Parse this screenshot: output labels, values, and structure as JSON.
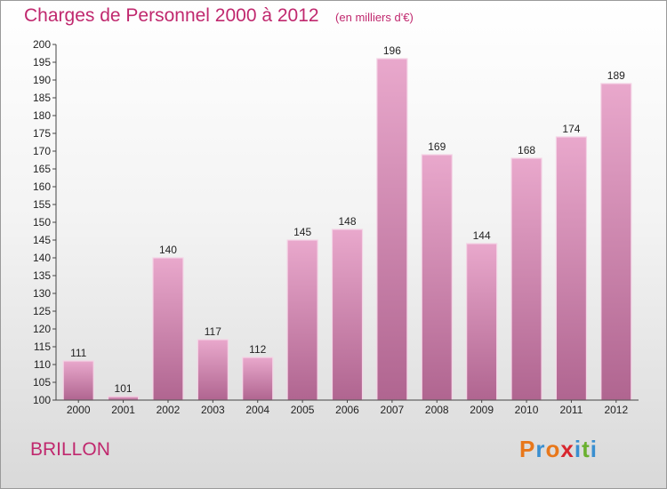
{
  "header": {
    "title": "Charges de Personnel 2000 à 2012",
    "unit": "(en milliers d'€)"
  },
  "place": "BRILLON",
  "logo": {
    "text": "Proxiti",
    "letters": [
      {
        "ch": "P",
        "color": "#e8771a"
      },
      {
        "ch": "r",
        "color": "#3a8fd0"
      },
      {
        "ch": "o",
        "color": "#e8771a"
      },
      {
        "ch": "x",
        "color": "#d8262e"
      },
      {
        "ch": "i",
        "color": "#3a8fd0"
      },
      {
        "ch": "t",
        "color": "#6ab02f"
      },
      {
        "ch": "i",
        "color": "#3a8fd0"
      }
    ]
  },
  "chart_data": {
    "type": "bar",
    "categories": [
      "2000",
      "2001",
      "2002",
      "2003",
      "2004",
      "2005",
      "2006",
      "2007",
      "2008",
      "2009",
      "2010",
      "2011",
      "2012"
    ],
    "values": [
      111,
      101,
      140,
      117,
      112,
      145,
      148,
      196,
      169,
      144,
      168,
      174,
      189
    ],
    "title": "Charges de Personnel 2000 à 2012",
    "ylim": [
      100,
      200
    ],
    "ytick_step": 5,
    "grid": false,
    "colors": {
      "bar_top": "#e9a8cc",
      "bar_bottom": "#b06590",
      "title": "#c0286e",
      "axis": "#444444"
    }
  }
}
